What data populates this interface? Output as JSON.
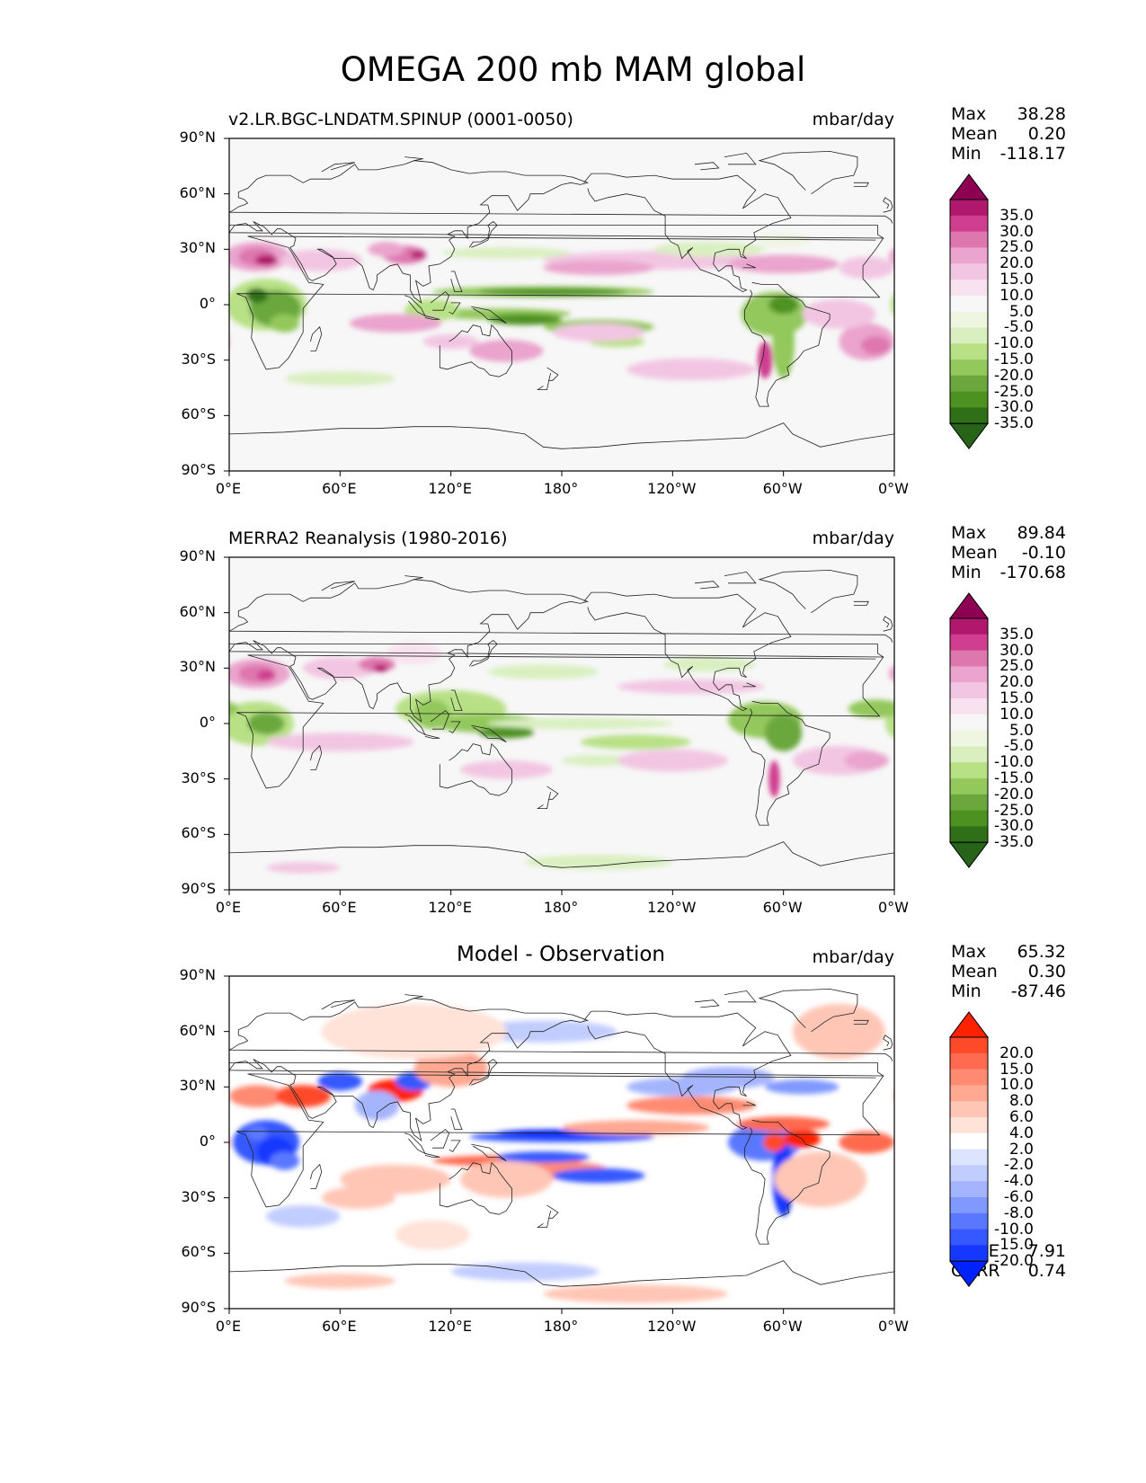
{
  "title": "OMEGA 200 mb MAM global",
  "lat_labels": [
    "90°N",
    "60°N",
    "30°N",
    "0°",
    "30°S",
    "60°S",
    "90°S"
  ],
  "lon_labels": [
    "0°E",
    "60°E",
    "120°E",
    "180°",
    "120°W",
    "60°W",
    "0°W"
  ],
  "panels": [
    {
      "title": "v2.LR.BGC-LNDATM.SPINUP (0001-0050)",
      "units": "mbar/day",
      "max_label": "Max",
      "max": "38.28",
      "mean_label": "Mean",
      "mean": "0.20",
      "min_label": "Min",
      "min": "-118.17",
      "levels": [
        "35.0",
        "30.0",
        "25.0",
        "20.0",
        "15.0",
        "10.0",
        "5.0",
        "-5.0",
        "-10.0",
        "-15.0",
        "-20.0",
        "-25.0",
        "-30.0",
        "-35.0"
      ]
    },
    {
      "title": "MERRA2 Reanalysis (1980-2016)",
      "units": "mbar/day",
      "max_label": "Max",
      "max": "89.84",
      "mean_label": "Mean",
      "mean": "-0.10",
      "min_label": "Min",
      "min": "-170.68",
      "levels": [
        "35.0",
        "30.0",
        "25.0",
        "20.0",
        "15.0",
        "10.0",
        "5.0",
        "-5.0",
        "-10.0",
        "-15.0",
        "-20.0",
        "-25.0",
        "-30.0",
        "-35.0"
      ]
    },
    {
      "title": "Model - Observation",
      "units": "mbar/day",
      "max_label": "Max",
      "max": "65.32",
      "mean_label": "Mean",
      "mean": "0.30",
      "min_label": "Min",
      "min": "-87.46",
      "levels": [
        "20.0",
        "15.0",
        "10.0",
        "8.0",
        "6.0",
        "4.0",
        "2.0",
        "-2.0",
        "-4.0",
        "-6.0",
        "-8.0",
        "-10.0",
        "-15.0",
        "-20.0"
      ],
      "rmse_label": "RMSE",
      "rmse": "7.91",
      "corr_label": "CORR",
      "corr": "0.74"
    }
  ],
  "colors": {
    "pg": [
      "#8e0152",
      "#b0186d",
      "#cf3e8f",
      "#de77ae",
      "#eaa4cd",
      "#f2c6e2",
      "#f9e2f0",
      "#f7f7f7",
      "#eef6e2",
      "#d9efc0",
      "#b8e186",
      "#93c85c",
      "#6ba73d",
      "#4d9221",
      "#2f6f18",
      "#276419"
    ],
    "diff": [
      "#ff2200",
      "#ff4a2a",
      "#ff6a50",
      "#ff8a72",
      "#ffa892",
      "#ffc6b6",
      "#ffe2d8",
      "#ffffff",
      "#dde4ff",
      "#c2cdff",
      "#a4b4ff",
      "#8099ff",
      "#5a78ff",
      "#3658ff",
      "#1438ff",
      "#0022ff"
    ]
  }
}
